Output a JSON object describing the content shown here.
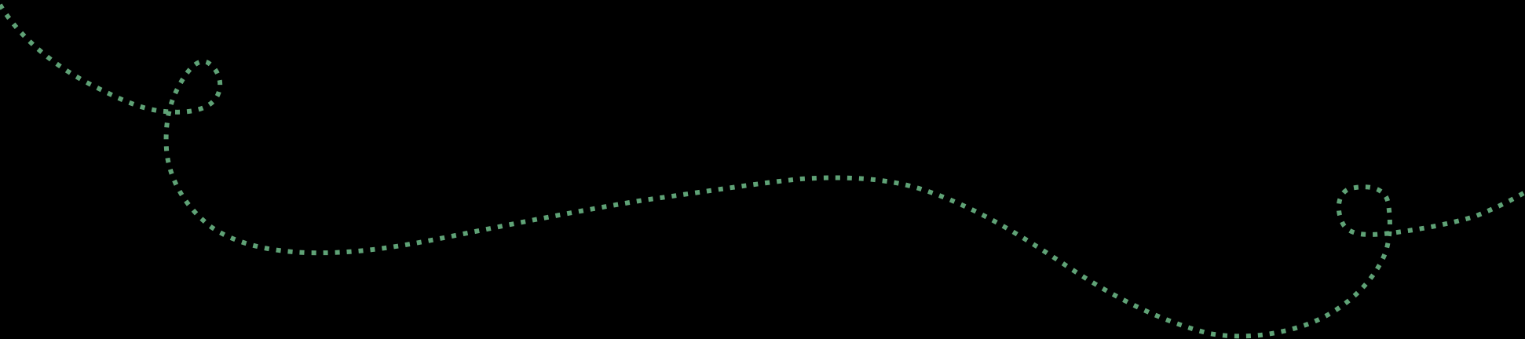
{
  "colors": {
    "background": "#000000",
    "stroke": "#5fa276"
  }
}
